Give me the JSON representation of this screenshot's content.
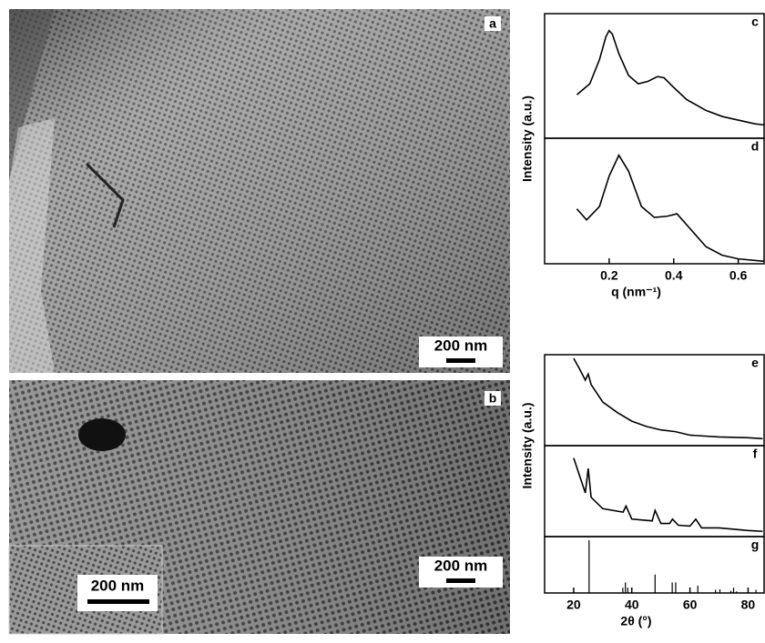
{
  "images": [
    {
      "label": "a",
      "scale_bar": "200 nm"
    },
    {
      "label": "b",
      "scale_bar": "200 nm",
      "inset_scale_bar": "200 nm"
    }
  ],
  "chart_data": [
    {
      "type": "line",
      "label": "c",
      "ylabel": "Intensity (a.u.)",
      "x": [
        0.1,
        0.14,
        0.17,
        0.19,
        0.2,
        0.21,
        0.23,
        0.26,
        0.29,
        0.32,
        0.35,
        0.37,
        0.4,
        0.44,
        0.5,
        0.55,
        0.6,
        0.65,
        0.68
      ],
      "values": [
        0.36,
        0.45,
        0.65,
        0.84,
        0.89,
        0.86,
        0.7,
        0.52,
        0.45,
        0.47,
        0.51,
        0.5,
        0.42,
        0.32,
        0.23,
        0.18,
        0.15,
        0.12,
        0.11
      ],
      "xlim": [
        0,
        0.68
      ],
      "ylim": [
        0,
        1
      ],
      "color": "#000000"
    },
    {
      "type": "line",
      "label": "d",
      "xlabel": "q (nm⁻¹)",
      "x": [
        0.1,
        0.13,
        0.17,
        0.2,
        0.23,
        0.26,
        0.3,
        0.34,
        0.38,
        0.41,
        0.45,
        0.5,
        0.55,
        0.6,
        0.68
      ],
      "values": [
        0.45,
        0.36,
        0.47,
        0.72,
        0.89,
        0.76,
        0.47,
        0.38,
        0.39,
        0.41,
        0.29,
        0.14,
        0.07,
        0.04,
        0.02
      ],
      "xlim": [
        0,
        0.68
      ],
      "ylim": [
        0,
        1
      ],
      "xticks": [
        0.2,
        0.4,
        0.6
      ],
      "color": "#000000"
    },
    {
      "type": "line",
      "label": "e",
      "ylabel": "Intensity (a.u.)",
      "x": [
        20,
        22,
        24,
        25,
        26,
        28,
        30,
        35,
        40,
        45,
        50,
        55,
        60,
        70,
        80,
        85
      ],
      "values": [
        1.0,
        0.88,
        0.75,
        0.82,
        0.7,
        0.6,
        0.5,
        0.38,
        0.28,
        0.22,
        0.18,
        0.16,
        0.12,
        0.1,
        0.09,
        0.08
      ],
      "xlim": [
        10,
        85.5
      ],
      "ylim": [
        0,
        1
      ],
      "color": "#000000"
    },
    {
      "type": "line",
      "label": "f",
      "x": [
        20,
        22,
        24,
        25,
        26,
        30,
        37,
        38,
        40,
        47,
        48,
        50,
        53,
        54,
        56,
        60,
        62,
        64,
        70,
        80,
        85
      ],
      "values": [
        0.9,
        0.7,
        0.5,
        0.78,
        0.45,
        0.32,
        0.28,
        0.35,
        0.2,
        0.18,
        0.3,
        0.15,
        0.15,
        0.2,
        0.13,
        0.12,
        0.2,
        0.1,
        0.1,
        0.07,
        0.06
      ],
      "xlim": [
        10,
        85.5
      ],
      "ylim": [
        0,
        1
      ],
      "color": "#000000"
    },
    {
      "type": "stick",
      "label": "g",
      "xlabel": "2θ (°)",
      "x": [
        25.3,
        36.9,
        37.8,
        38.6,
        48.0,
        53.9,
        55.1,
        62.7,
        68.8,
        70.3,
        74.1,
        75.0,
        76.0,
        82.7
      ],
      "values": [
        1.0,
        0.1,
        0.2,
        0.1,
        0.35,
        0.2,
        0.2,
        0.14,
        0.06,
        0.07,
        0.04,
        0.1,
        0.03,
        0.06
      ],
      "xlim": [
        10,
        85.5
      ],
      "ylim": [
        0,
        1
      ],
      "xticks": [
        20,
        40,
        60,
        80
      ],
      "color": "#000000"
    }
  ]
}
